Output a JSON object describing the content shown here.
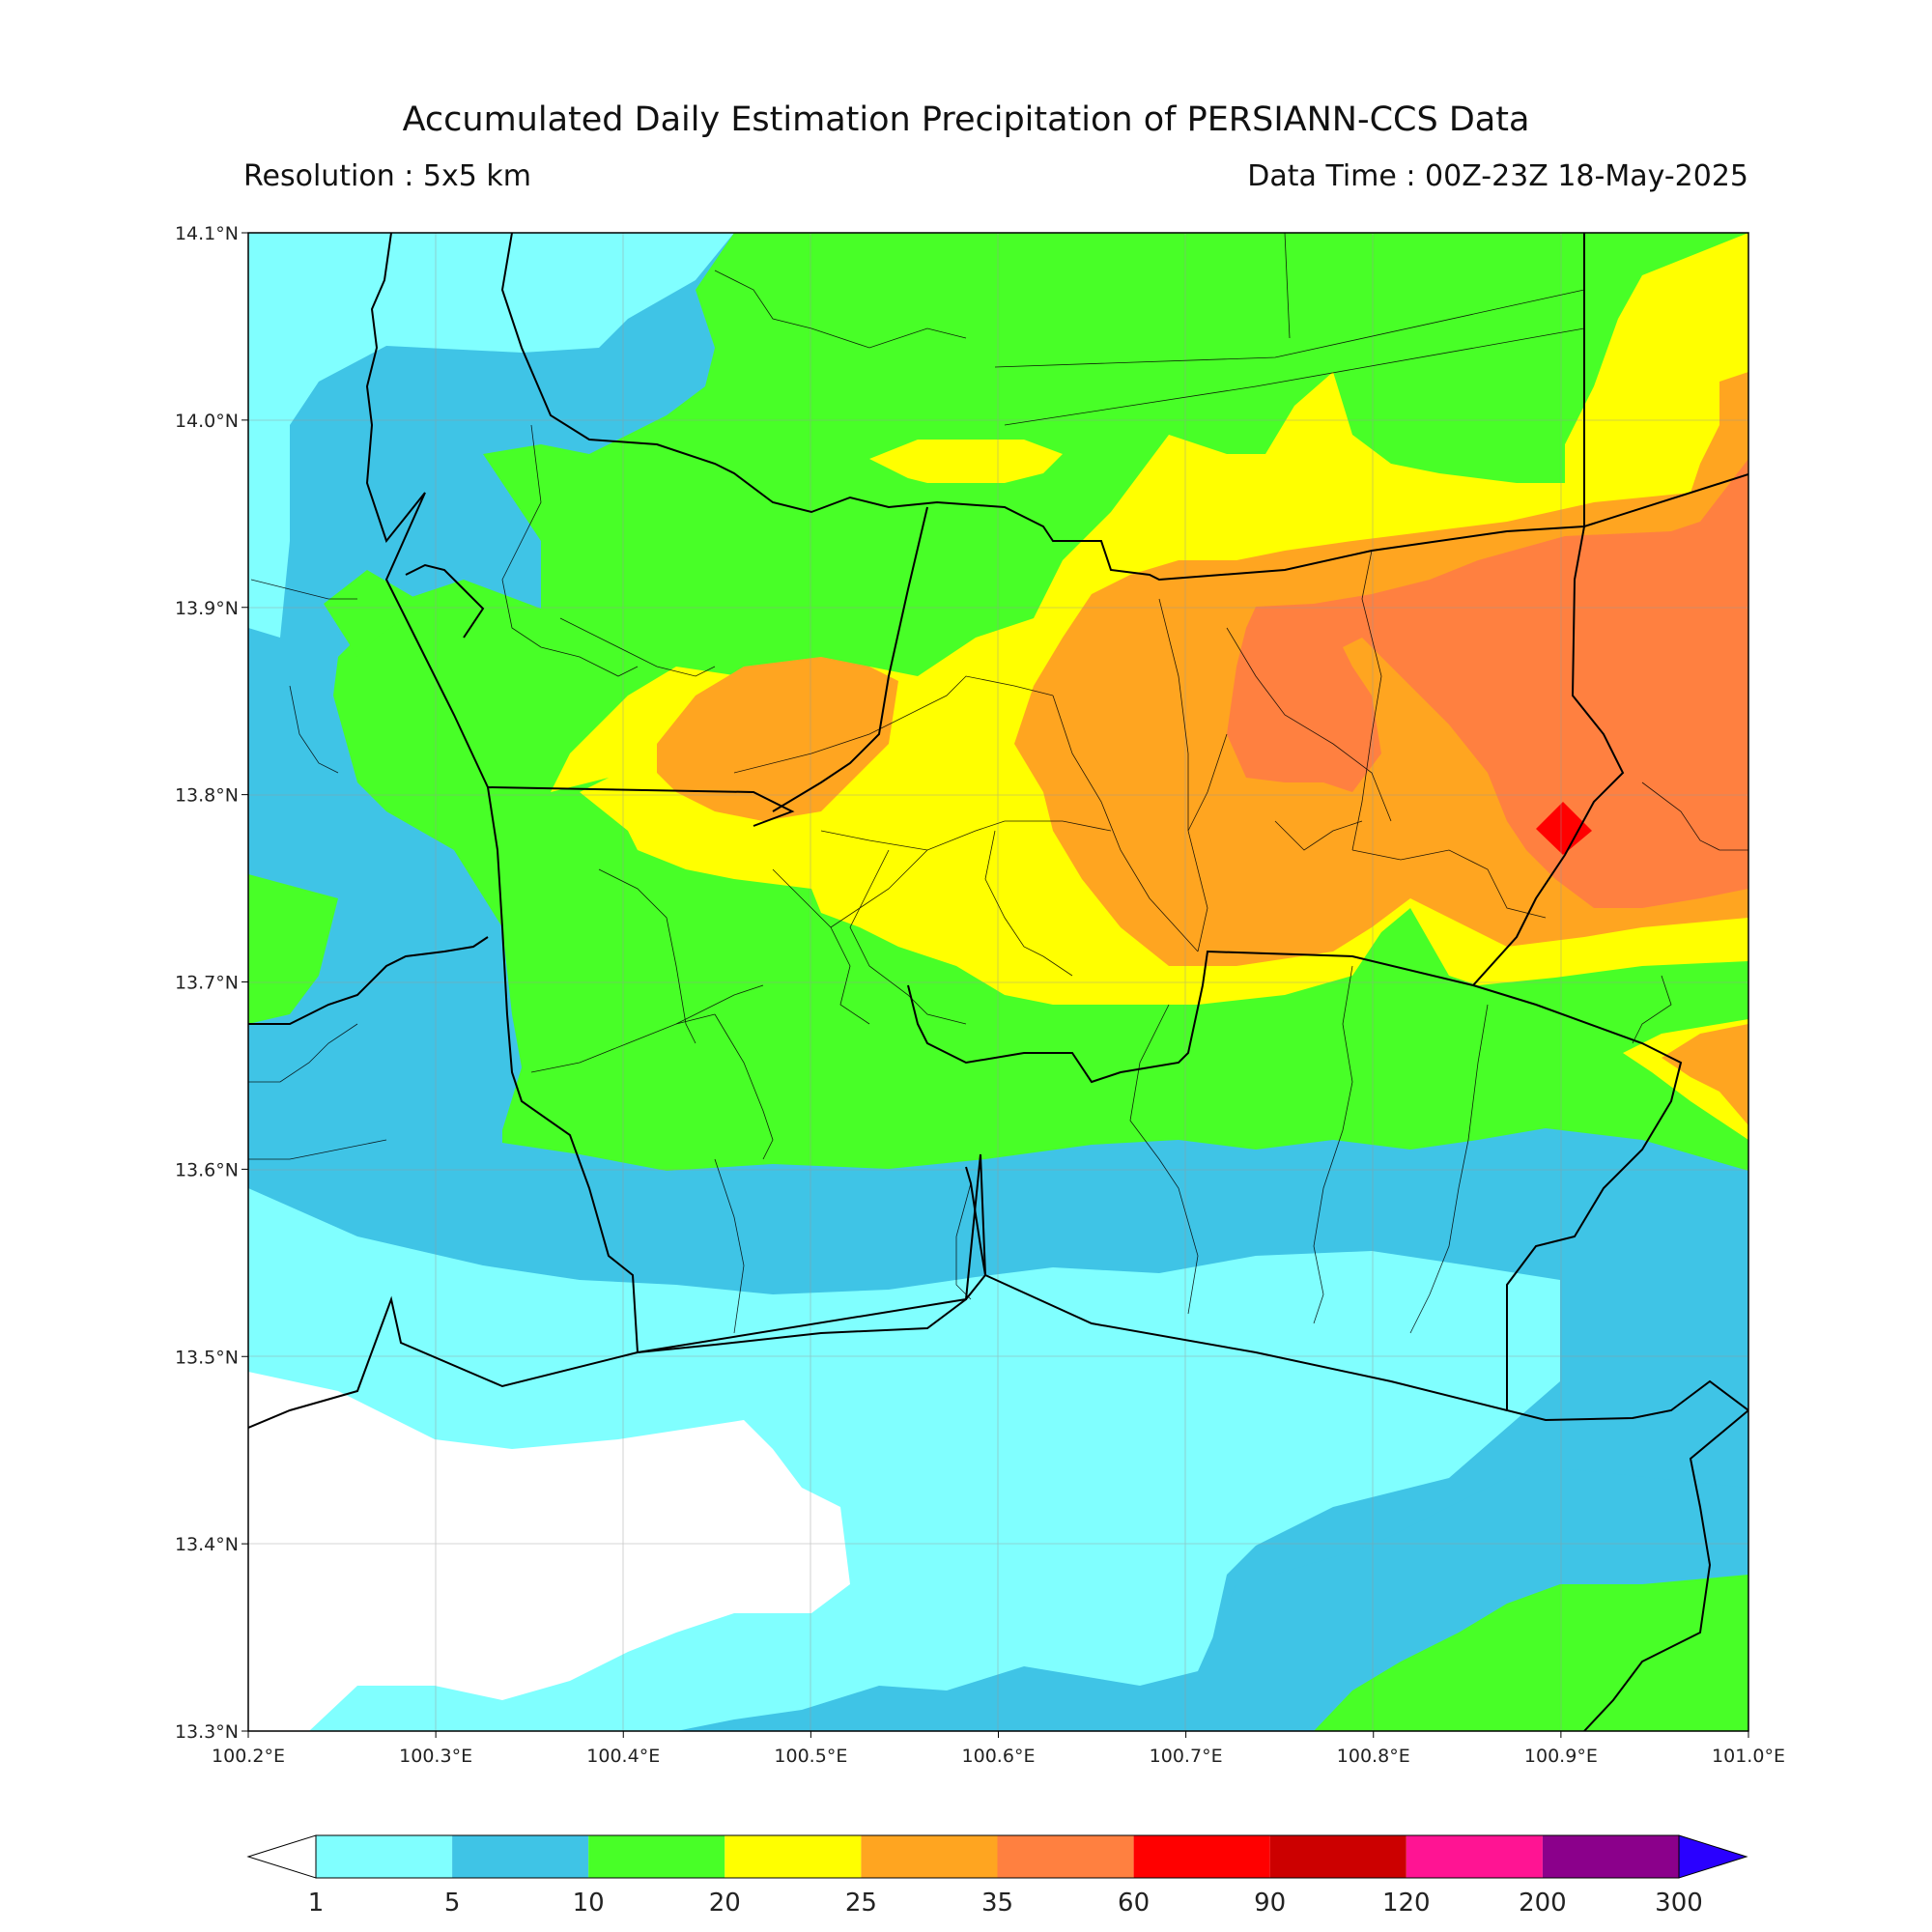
{
  "header": {
    "title": "Accumulated Daily Estimation Precipitation of PERSIANN-CCS Data",
    "resolution": "Resolution : 5x5 km",
    "data_time": "Data Time : 00Z-23Z 18-May-2025"
  },
  "axes": {
    "lon_ticks": [
      "100.2°E",
      "100.3°E",
      "100.4°E",
      "100.5°E",
      "100.6°E",
      "100.7°E",
      "100.8°E",
      "100.9°E",
      "101.0°E"
    ],
    "lat_ticks": [
      "14.1°N",
      "14.0°N",
      "13.9°N",
      "13.8°N",
      "13.7°N",
      "13.6°N",
      "13.5°N",
      "13.4°N",
      "13.3°N"
    ],
    "lon_range": [
      100.2,
      101.0
    ],
    "lat_range": [
      13.3,
      14.1
    ],
    "grid": true
  },
  "colorbar": {
    "levels": [
      "1",
      "5",
      "10",
      "20",
      "25",
      "35",
      "60",
      "90",
      "120",
      "200",
      "300"
    ],
    "colors": [
      "#80ffff",
      "#3fc4e6",
      "#48ff27",
      "#ffff00",
      "#ffa520",
      "#ff8040",
      "#ff0000",
      "#cc0000",
      "#ff1493",
      "#8b008b"
    ],
    "under_color": "#ffffff",
    "over_color": "#2a00ff",
    "extend": "both"
  },
  "legend_colors": {
    "class_1_5": "#80ffff",
    "class_5_10": "#3fc4e6",
    "class_10_20": "#48ff27",
    "class_20_25": "#ffff00",
    "class_25_35": "#ffa520",
    "class_35_60": "#ff8040",
    "class_60_90": "#ff0000"
  }
}
